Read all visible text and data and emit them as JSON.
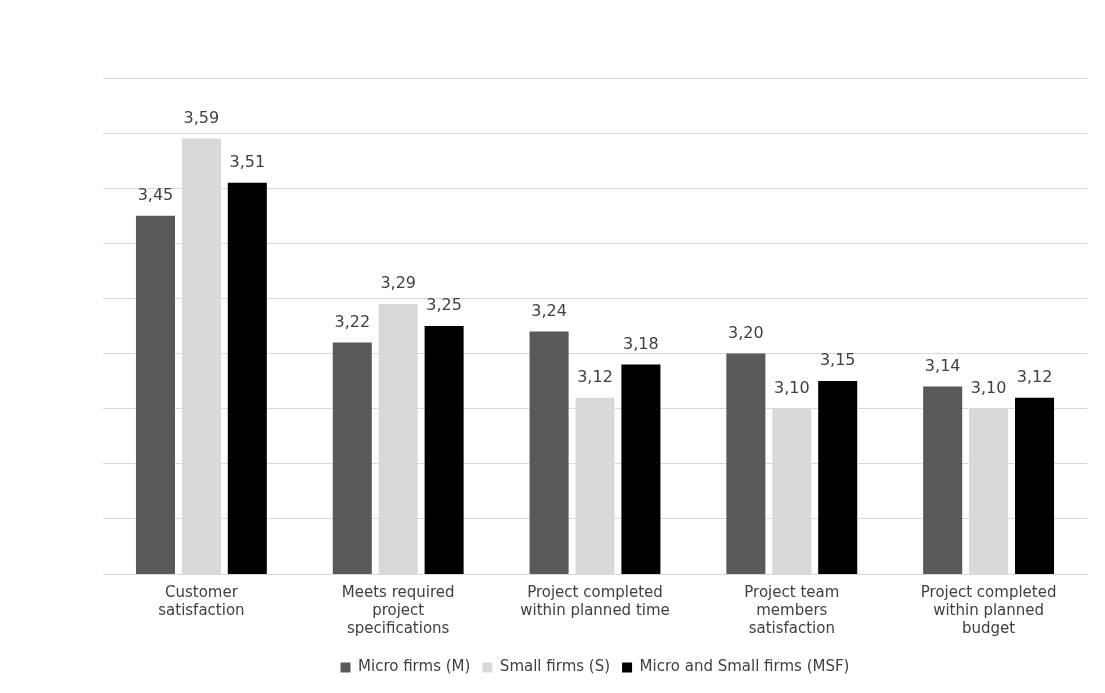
{
  "chart_data": {
    "type": "bar",
    "categories": [
      "Customer satisfaction",
      "Meets required project specifications",
      "Project completed within planned time",
      "Project team members satisfaction",
      "Project completed within planned budget"
    ],
    "series": [
      {
        "name": "Micro firms (M)",
        "color": "#595959",
        "values": [
          3.45,
          3.22,
          3.24,
          3.2,
          3.14
        ],
        "value_labels": [
          "3,45",
          "3,22",
          "3,24",
          "3,20",
          "3,14"
        ]
      },
      {
        "name": "Small firms (S)",
        "color": "#d9d9d9",
        "values": [
          3.59,
          3.29,
          3.12,
          3.1,
          3.1
        ],
        "value_labels": [
          "3,59",
          "3,29",
          "3,12",
          "3,10",
          "3,10"
        ]
      },
      {
        "name": "Micro and Small firms (MSF)",
        "color": "#000000",
        "values": [
          3.51,
          3.25,
          3.18,
          3.15,
          3.12
        ],
        "value_labels": [
          "3,51",
          "3,25",
          "3,18",
          "3,15",
          "3,12"
        ]
      }
    ],
    "ylim": [
      2.8,
      3.7
    ],
    "yticks": [
      {
        "value": 2.8,
        "label": null
      },
      {
        "value": 2.9,
        "label": null
      },
      {
        "value": 3.0,
        "label": null
      },
      {
        "value": 3.1,
        "label": null
      },
      {
        "value": 3.2,
        "label": null
      },
      {
        "value": 3.3,
        "label": null
      },
      {
        "value": 3.4,
        "label": null
      },
      {
        "value": 3.5,
        "label": null
      },
      {
        "value": 3.6,
        "label": null
      },
      {
        "value": 3.7,
        "label": null
      }
    ],
    "tick_labels": "x",
    "grid": "y",
    "legend": "bottom"
  }
}
